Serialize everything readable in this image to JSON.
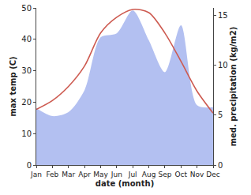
{
  "chart_data": {
    "type": "line",
    "x_label": "date (month)",
    "y_label": "max temp (C)",
    "y2_label": "med. precipitation (kg/m2)",
    "categories": [
      "Jan",
      "Feb",
      "Mar",
      "Apr",
      "May",
      "Jun",
      "Jul",
      "Aug",
      "Sep",
      "Oct",
      "Nov",
      "Dec"
    ],
    "series": [
      {
        "name": "max temp",
        "type": "line",
        "color": "#cd5a50",
        "values": [
          17.7,
          20.5,
          25,
          31.5,
          42,
          47,
          49.5,
          48.5,
          42,
          33,
          23.5,
          16.5
        ]
      },
      {
        "name": "med. precipitation",
        "type": "area",
        "color": "#b3c0f1",
        "axis": "y2",
        "values": [
          5.7,
          4.9,
          5.3,
          7.5,
          12.8,
          13.2,
          15.5,
          12.5,
          9.3,
          14,
          6,
          5.8
        ]
      }
    ],
    "ylim": [
      0,
      50
    ],
    "yticks": [
      0,
      10,
      20,
      30,
      40,
      50
    ],
    "y2lim": [
      0,
      15.75
    ],
    "y2ticks": [
      0,
      5,
      10,
      15
    ],
    "grid": false
  }
}
